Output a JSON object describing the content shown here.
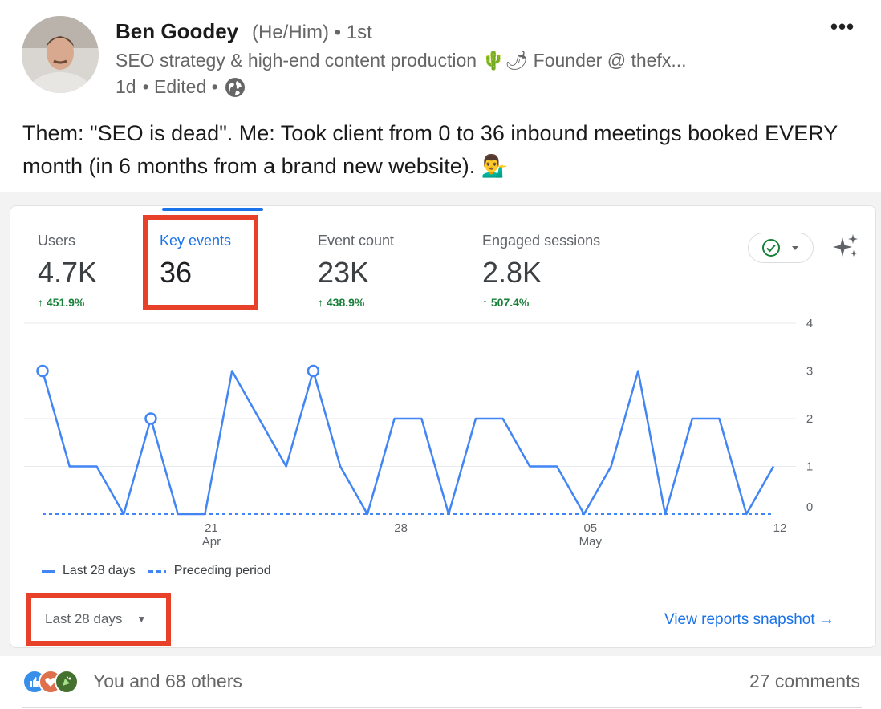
{
  "post": {
    "author_name": "Ben Goodey",
    "pronouns": "(He/Him)",
    "connection": "• 1st",
    "headline": "SEO strategy & high-end content production 🌵🌶 Founder @ thefx...",
    "time": "1d",
    "edited": "• Edited •",
    "visibility_icon": "globe-icon",
    "more_icon": "ellipsis-icon",
    "body": "Them: \"SEO is dead\". Me: Took client from 0 to 36 inbound meetings booked EVERY month (in 6 months from a brand new website). 💁‍♂️"
  },
  "analytics": {
    "metrics": [
      {
        "label": "Users",
        "value": "4.7K",
        "change": "↑ 451.9%"
      },
      {
        "label": "Key events",
        "value": "36",
        "change": ""
      },
      {
        "label": "Event count",
        "value": "23K",
        "change": "↑ 438.9%"
      },
      {
        "label": "Engaged sessions",
        "value": "2.8K",
        "change": "↑ 507.4%"
      }
    ],
    "legend": {
      "current": "Last 28 days",
      "previous": "Preceding period"
    },
    "date_range": "Last 28 days",
    "view_link": "View reports snapshot →",
    "colors": {
      "accent": "#1a73e8",
      "line": "#4285f4",
      "highlight": "#e8412a",
      "positive": "#188038"
    }
  },
  "chart_data": {
    "type": "line",
    "ylim": [
      0,
      4
    ],
    "yticks": [
      "0",
      "1",
      "2",
      "3",
      "4"
    ],
    "xtick_labels": [
      {
        "day": 6,
        "label": "21",
        "sub": "Apr"
      },
      {
        "day": 13,
        "label": "28",
        "sub": ""
      },
      {
        "day": 20,
        "label": "05",
        "sub": "May"
      },
      {
        "day": 27,
        "label": "12",
        "sub": ""
      }
    ],
    "series": [
      {
        "name": "Last 28 days",
        "style": "solid",
        "values": [
          3,
          1,
          1,
          0,
          2,
          0,
          0,
          3,
          2,
          1,
          3,
          1,
          0,
          2,
          2,
          0,
          2,
          2,
          1,
          1,
          0,
          1,
          3,
          0,
          2,
          2,
          0,
          1
        ]
      },
      {
        "name": "Preceding period",
        "style": "dashed",
        "values": [
          0,
          0,
          0,
          0,
          0,
          0,
          0,
          0,
          0,
          0,
          0,
          0,
          0,
          0,
          0,
          0,
          0,
          0,
          0,
          0,
          0,
          0,
          0,
          0,
          0,
          0,
          0,
          0
        ]
      }
    ],
    "marked_points": [
      0,
      4,
      10
    ]
  },
  "footer": {
    "reactions_text": "You and 68 others",
    "comments": "27 comments"
  }
}
